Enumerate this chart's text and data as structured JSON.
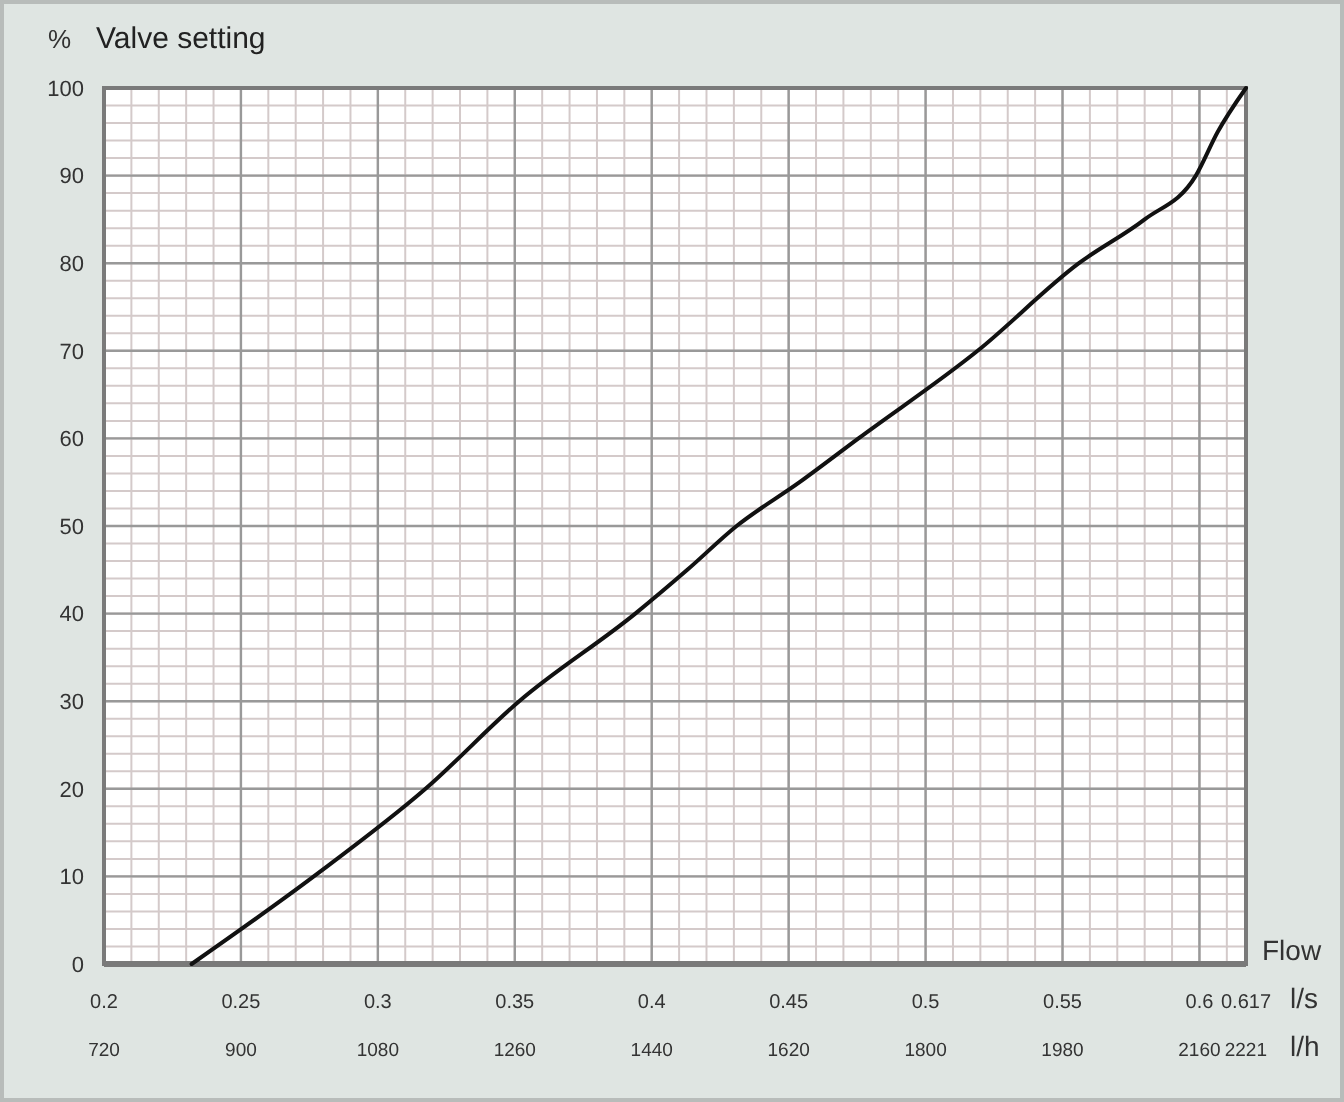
{
  "chart_data": {
    "type": "line",
    "title": "Valve setting",
    "ylabel": "%",
    "xlabel": "l/s",
    "x2label": "l/h",
    "annotations": [
      "Flow"
    ],
    "series": [
      {
        "color": "#111111",
        "x": [
          0.232,
          0.2766,
          0.3174,
          0.3516,
          0.394,
          0.413,
          0.431,
          0.454,
          0.4755,
          0.519,
          0.556,
          0.58,
          0.5987,
          0.6067,
          0.617
        ],
        "values": [
          0,
          10,
          20,
          30,
          40,
          45,
          50,
          55,
          60,
          70,
          80,
          85,
          90,
          95,
          100
        ]
      }
    ],
    "xlim": [
      0.2,
      0.617
    ],
    "xticks": [
      0.2,
      0.25,
      0.3,
      0.35,
      0.4,
      0.45,
      0.5,
      0.55,
      0.6,
      0.617
    ],
    "x2lim": [
      720,
      2221.2
    ],
    "x2ticks": [
      720,
      900,
      1080,
      1260,
      1440,
      1620,
      1800,
      1980,
      2160,
      2221
    ],
    "ylim": [
      0,
      100
    ],
    "yticks": [
      0,
      10,
      20,
      30,
      40,
      50,
      60,
      70,
      80,
      90,
      100
    ],
    "grid": true,
    "marker": "none",
    "line_style": "solid"
  }
}
